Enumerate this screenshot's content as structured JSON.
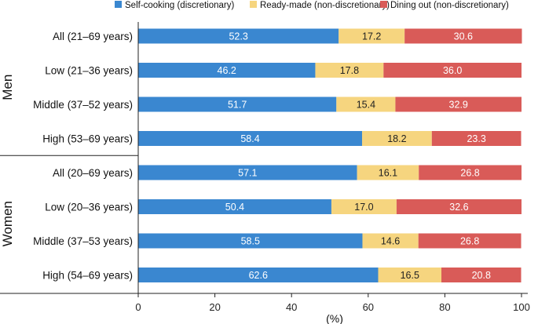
{
  "chart_data": {
    "type": "bar",
    "orientation": "horizontal",
    "stacked": true,
    "xlabel": "(%)",
    "xlim": [
      0,
      100
    ],
    "xticks": [
      "0",
      "20",
      "40",
      "60",
      "80",
      "100"
    ],
    "groups": [
      "Men",
      "Women"
    ],
    "categories": [
      {
        "label": "All (21–69 years)",
        "group": "Men"
      },
      {
        "label": "Low (21–36 years)",
        "group": "Men"
      },
      {
        "label": "Middle (37–52 years)",
        "group": "Men"
      },
      {
        "label": "High (53–69 years)",
        "group": "Men"
      },
      {
        "label": "All (20–69 years)",
        "group": "Women"
      },
      {
        "label": "Low (20–36 years)",
        "group": "Women"
      },
      {
        "label": "Middle (37–53 years)",
        "group": "Women"
      },
      {
        "label": "High (54–69 years)",
        "group": "Women"
      }
    ],
    "series": [
      {
        "name": "Self-cooking (discretionary)",
        "color": "#3a87d0",
        "label_color": "#ffffff",
        "values": [
          52.3,
          46.2,
          51.7,
          58.4,
          57.1,
          50.4,
          58.5,
          62.6
        ],
        "labels": [
          "52.3",
          "46.2",
          "51.7",
          "58.4",
          "57.1",
          "50.4",
          "58.5",
          "62.6"
        ]
      },
      {
        "name": "Ready-made (non-discretionary)",
        "color": "#f6d57f",
        "label_color": "#222222",
        "values": [
          17.2,
          17.8,
          15.4,
          18.2,
          16.1,
          17.0,
          14.6,
          16.5
        ],
        "labels": [
          "17.2",
          "17.8",
          "15.4",
          "18.2",
          "16.1",
          "17.0",
          "14.6",
          "16.5"
        ]
      },
      {
        "name": "Dining out (non-discretionary)",
        "color": "#d95b58",
        "label_color": "#ffffff",
        "values": [
          30.6,
          36.0,
          32.9,
          23.3,
          26.8,
          32.6,
          26.8,
          20.8
        ],
        "labels": [
          "30.6",
          "36.0",
          "32.9",
          "23.3",
          "26.8",
          "32.6",
          "26.8",
          "20.8"
        ]
      }
    ]
  }
}
